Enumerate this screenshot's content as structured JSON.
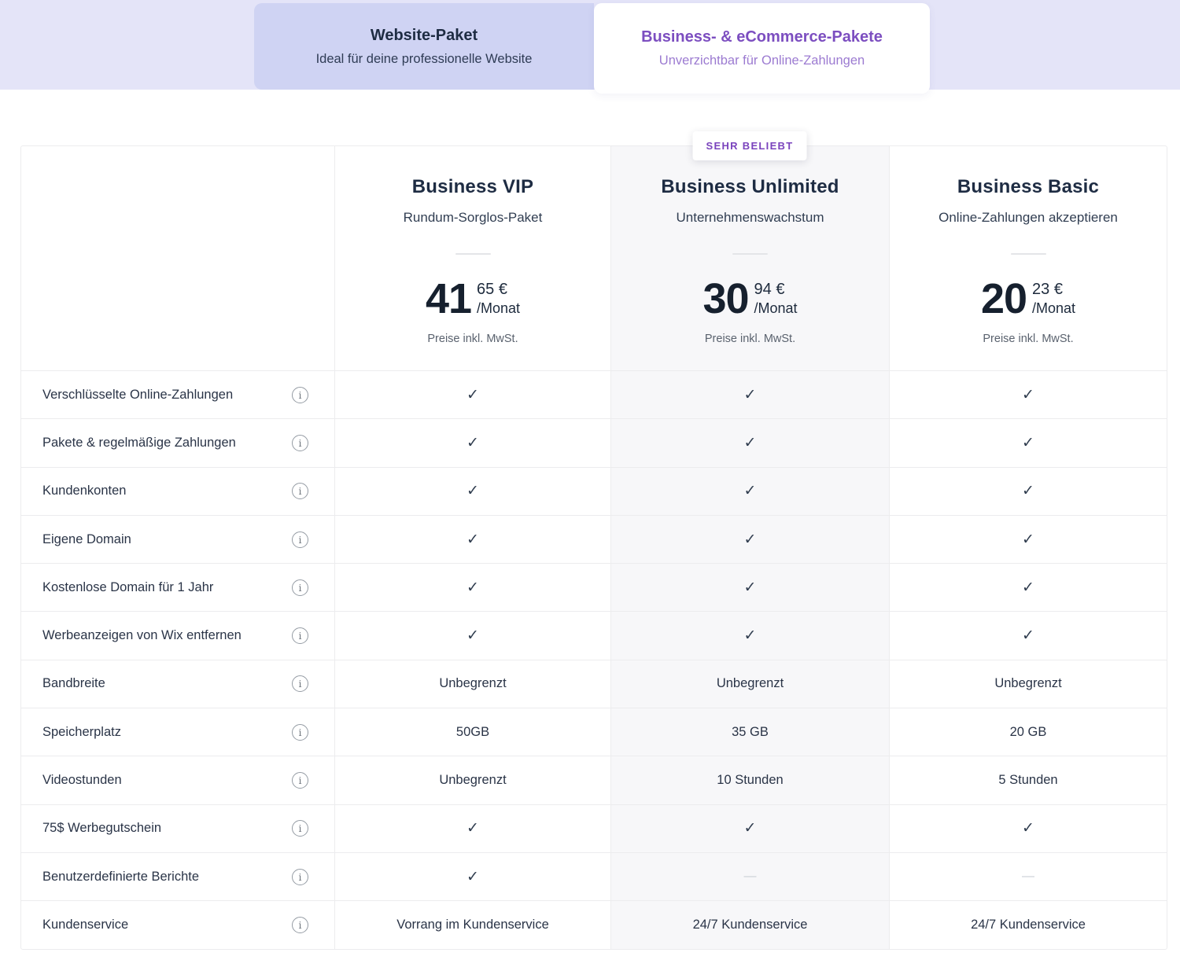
{
  "tabs": [
    {
      "title": "Website-Paket",
      "subtitle": "Ideal für deine professionelle Website",
      "active": false
    },
    {
      "title": "Business- & eCommerce-Pakete",
      "subtitle": "Unverzichtbar für Online-Zahlungen",
      "active": true
    }
  ],
  "badge_label": "SEHR BELIEBT",
  "plans": [
    {
      "title": "Business VIP",
      "subtitle": "Rundum-Sorglos-Paket",
      "price_int": "41",
      "price_cents": "65 €",
      "per": "/Monat",
      "vat": "Preise inkl. MwSt.",
      "highlight": false
    },
    {
      "title": "Business Unlimited",
      "subtitle": "Unternehmenswachstum",
      "price_int": "30",
      "price_cents": "94 €",
      "per": "/Monat",
      "vat": "Preise inkl. MwSt.",
      "highlight": true
    },
    {
      "title": "Business Basic",
      "subtitle": "Online-Zahlungen akzeptieren",
      "price_int": "20",
      "price_cents": "23 €",
      "per": "/Monat",
      "vat": "Preise inkl. MwSt.",
      "highlight": false
    }
  ],
  "icons": {
    "check": "✓",
    "dash": "—",
    "info": "i"
  },
  "table": {
    "rows": [
      {
        "label": "Verschlüsselte Online-Zahlungen",
        "cells": [
          "check",
          "check",
          "check"
        ]
      },
      {
        "label": "Pakete & regelmäßige Zahlungen",
        "cells": [
          "check",
          "check",
          "check"
        ]
      },
      {
        "label": "Kundenkonten",
        "cells": [
          "check",
          "check",
          "check"
        ]
      },
      {
        "label": "Eigene Domain",
        "cells": [
          "check",
          "check",
          "check"
        ]
      },
      {
        "label": "Kostenlose Domain für 1 Jahr",
        "cells": [
          "check",
          "check",
          "check"
        ]
      },
      {
        "label": "Werbeanzeigen von Wix entfernen",
        "cells": [
          "check",
          "check",
          "check"
        ]
      },
      {
        "label": "Bandbreite",
        "cells": [
          "Unbegrenzt",
          "Unbegrenzt",
          "Unbegrenzt"
        ]
      },
      {
        "label": "Speicherplatz",
        "cells": [
          "50GB",
          "35 GB",
          "20 GB"
        ]
      },
      {
        "label": "Videostunden",
        "cells": [
          "Unbegrenzt",
          "10 Stunden",
          "5 Stunden"
        ]
      },
      {
        "label": "75$ Werbegutschein",
        "cells": [
          "check",
          "check",
          "check"
        ]
      },
      {
        "label": "Benutzerdefinierte Berichte",
        "cells": [
          "check",
          "dash",
          "dash"
        ]
      },
      {
        "label": "Kundenservice",
        "cells": [
          "Vorrang im Kundenservice",
          "24/7 Kundenservice",
          "24/7 Kundenservice"
        ]
      }
    ]
  },
  "colors": {
    "accent_purple": "#7c4ec0",
    "badge_purple": "#7a43bd",
    "tab_band": "#e4e4f8",
    "inactive_tab": "#cfd3f3",
    "highlight_column": "#f7f7f9",
    "text_dark": "#1e2c43"
  }
}
